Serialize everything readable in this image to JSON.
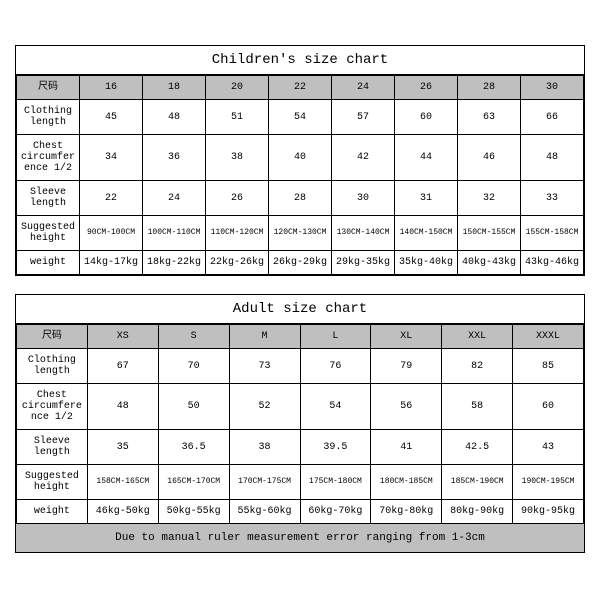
{
  "children": {
    "title": "Children's size chart",
    "header_label": "尺码",
    "sizes": [
      "16",
      "18",
      "20",
      "22",
      "24",
      "26",
      "28",
      "30"
    ],
    "rows": [
      {
        "label": "Clothing length",
        "vals": [
          "45",
          "48",
          "51",
          "54",
          "57",
          "60",
          "63",
          "66"
        ],
        "sm": false
      },
      {
        "label": "Chest circumference 1/2",
        "vals": [
          "34",
          "36",
          "38",
          "40",
          "42",
          "44",
          "46",
          "48"
        ],
        "sm": false
      },
      {
        "label": "Sleeve length",
        "vals": [
          "22",
          "24",
          "26",
          "28",
          "30",
          "31",
          "32",
          "33"
        ],
        "sm": false
      },
      {
        "label": "Suggested height",
        "vals": [
          "90CM-100CM",
          "100CM-110CM",
          "110CM-120CM",
          "120CM-130CM",
          "130CM-140CM",
          "140CM-150CM",
          "150CM-155CM",
          "155CM-158CM"
        ],
        "sm": true
      },
      {
        "label": "weight",
        "vals": [
          "14kg-17kg",
          "18kg-22kg",
          "22kg-26kg",
          "26kg-29kg",
          "29kg-35kg",
          "35kg-40kg",
          "40kg-43kg",
          "43kg-46kg"
        ],
        "sm": false
      }
    ]
  },
  "adult": {
    "title": "Adult size chart",
    "header_label": "尺码",
    "sizes": [
      "XS",
      "S",
      "M",
      "L",
      "XL",
      "XXL",
      "XXXL"
    ],
    "rows": [
      {
        "label": "Clothing length",
        "vals": [
          "67",
          "70",
          "73",
          "76",
          "79",
          "82",
          "85"
        ],
        "sm": false
      },
      {
        "label": "Chest circumference 1/2",
        "vals": [
          "48",
          "50",
          "52",
          "54",
          "56",
          "58",
          "60"
        ],
        "sm": false
      },
      {
        "label": "Sleeve length",
        "vals": [
          "35",
          "36.5",
          "38",
          "39.5",
          "41",
          "42.5",
          "43"
        ],
        "sm": false
      },
      {
        "label": "Suggested height",
        "vals": [
          "158CM-165CM",
          "165CM-170CM",
          "170CM-175CM",
          "175CM-180CM",
          "180CM-185CM",
          "185CM-190CM",
          "190CM-195CM"
        ],
        "sm": true
      },
      {
        "label": "weight",
        "vals": [
          "46kg-50kg",
          "50kg-55kg",
          "55kg-60kg",
          "60kg-70kg",
          "70kg-80kg",
          "80kg-90kg",
          "90kg-95kg"
        ],
        "sm": false
      }
    ],
    "note": "Due to manual ruler measurement error ranging from 1-3cm"
  },
  "colors": {
    "header_bg": "#bfbfbf",
    "border": "#000000",
    "bg": "#ffffff"
  }
}
